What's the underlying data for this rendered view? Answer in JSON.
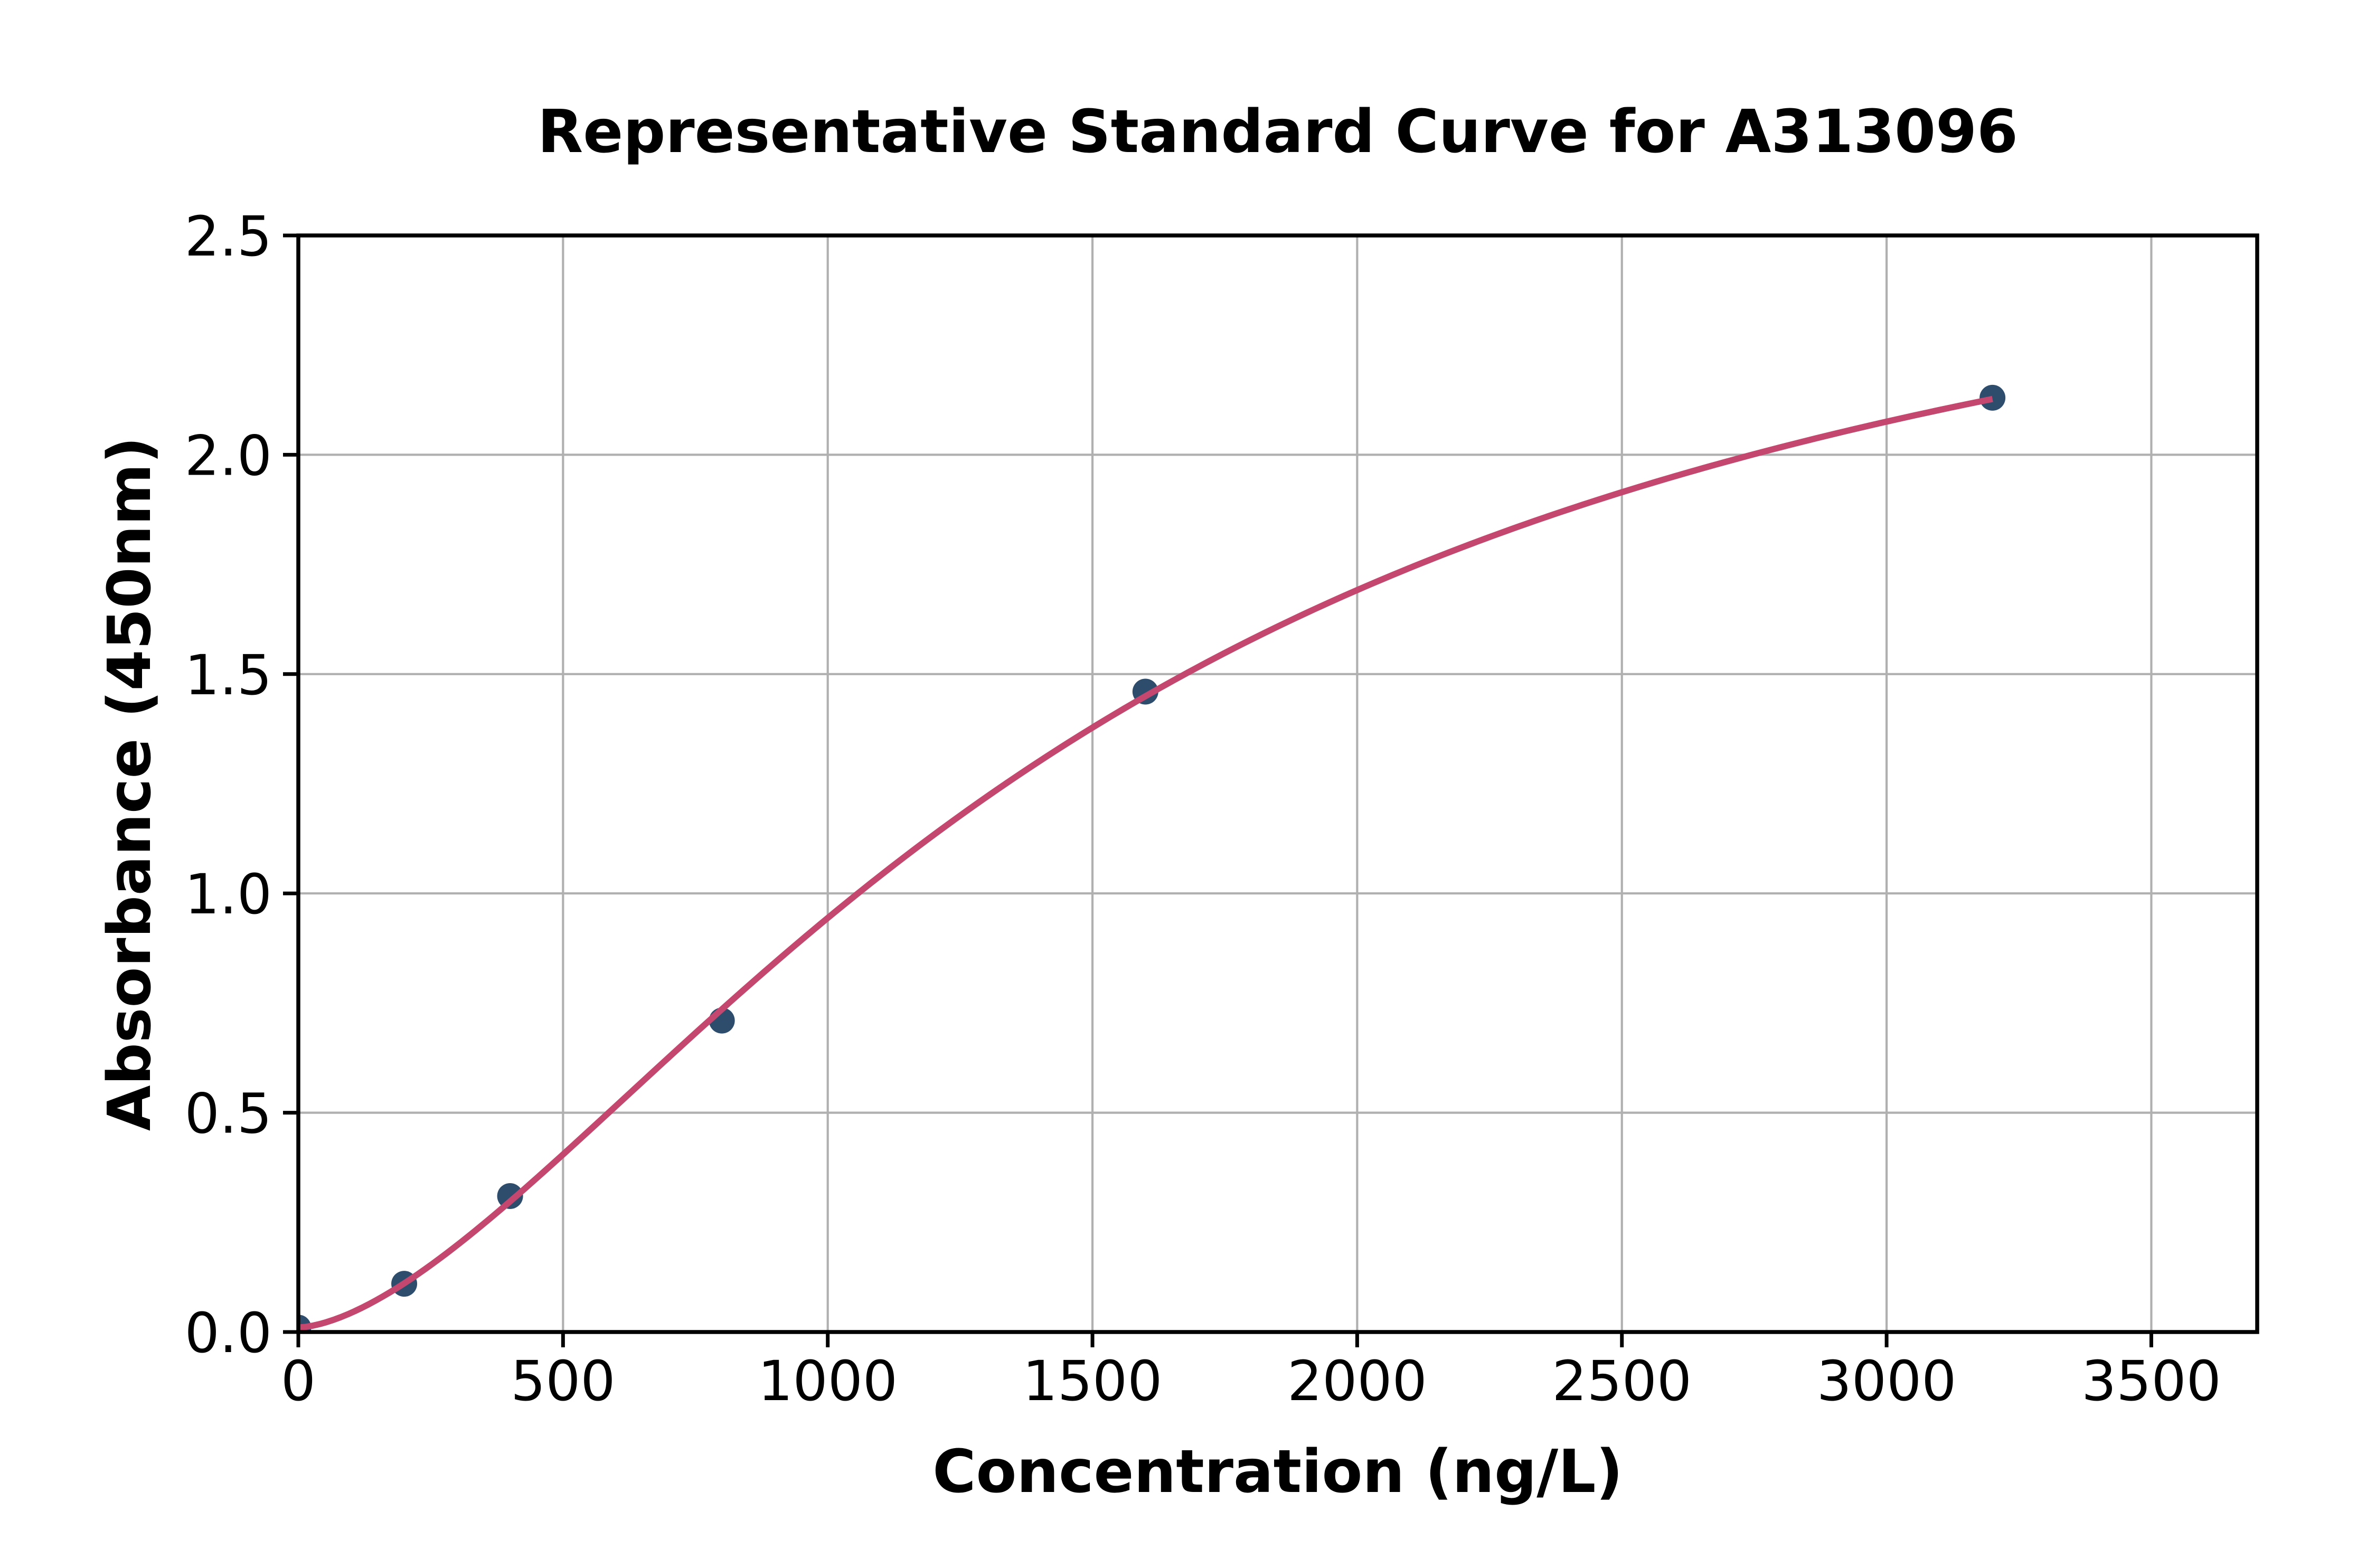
{
  "chart_data": {
    "type": "scatter",
    "title": "Representative Standard Curve for A313096",
    "xlabel": "Concentration (ng/L)",
    "ylabel": "Absorbance (450nm)",
    "x": [
      0,
      200,
      400,
      800,
      1600,
      3200
    ],
    "y": [
      0.01,
      0.11,
      0.31,
      0.71,
      1.46,
      2.13
    ],
    "fit_curve": {
      "type": "4PL",
      "a": 0.0103,
      "b": 1.6198,
      "c": 1502.4,
      "d": 2.7493,
      "x_start": 0,
      "x_end": 3200
    },
    "xlim": [
      0,
      3700
    ],
    "ylim": [
      0,
      2.5
    ],
    "x_ticks": [
      "0",
      "500",
      "1000",
      "1500",
      "2000",
      "2500",
      "3000",
      "3500"
    ],
    "y_ticks": [
      "0.0",
      "0.5",
      "1.0",
      "1.5",
      "2.0",
      "2.5"
    ],
    "grid": true,
    "legend_position": "none",
    "colors": {
      "curve": "#C3476F",
      "marker": "#2E4D6D",
      "grid": "#B0B0B0",
      "axis": "#000000",
      "background": "#FFFFFF"
    }
  }
}
